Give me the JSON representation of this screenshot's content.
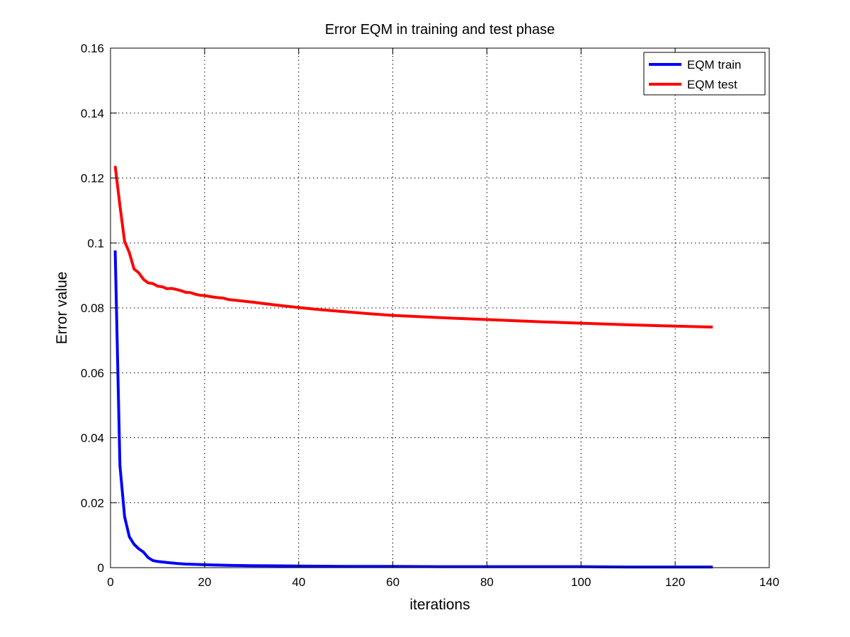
{
  "chart_data": {
    "type": "line",
    "title": "Error EQM in training and test phase",
    "xlabel": "iterations",
    "ylabel": "Error value",
    "xlim": [
      0,
      140
    ],
    "ylim": [
      0,
      0.16
    ],
    "xticks": [
      0,
      20,
      40,
      60,
      80,
      100,
      120,
      140
    ],
    "xtick_labels": [
      "0",
      "20",
      "40",
      "60",
      "80",
      "100",
      "120",
      "140"
    ],
    "yticks": [
      0,
      0.02,
      0.04,
      0.06,
      0.08,
      0.1,
      0.12,
      0.14,
      0.16
    ],
    "ytick_labels": [
      "0",
      "0.02",
      "0.04",
      "0.06",
      "0.08",
      "0.1",
      "0.12",
      "0.14",
      "0.16"
    ],
    "grid": true,
    "legend_position": "top-right",
    "series": [
      {
        "name": "EQM train",
        "color": "#0000ff",
        "x": [
          1,
          2,
          3,
          4,
          5,
          6,
          7,
          8,
          9,
          10,
          12,
          14,
          16,
          18,
          20,
          25,
          30,
          40,
          50,
          60,
          70,
          80,
          90,
          100,
          110,
          120,
          128
        ],
        "y": [
          0.0977,
          0.0315,
          0.0157,
          0.0095,
          0.0072,
          0.0058,
          0.0048,
          0.0031,
          0.0022,
          0.0019,
          0.0016,
          0.0013,
          0.0011,
          0.001,
          0.0009,
          0.0007,
          0.0006,
          0.0005,
          0.0004,
          0.0004,
          0.0003,
          0.0003,
          0.0003,
          0.0003,
          0.0002,
          0.0002,
          0.0002
        ]
      },
      {
        "name": "EQM test",
        "color": "#ff0000",
        "x": [
          1,
          2,
          3,
          4,
          5,
          6,
          7,
          8,
          9,
          10,
          11,
          12,
          13,
          14,
          15,
          16,
          17,
          18,
          19,
          20,
          22,
          24,
          25,
          30,
          35,
          40,
          45,
          50,
          55,
          60,
          70,
          80,
          90,
          100,
          110,
          120,
          128
        ],
        "y": [
          0.1237,
          0.1115,
          0.1005,
          0.097,
          0.092,
          0.0908,
          0.0888,
          0.0877,
          0.0875,
          0.0867,
          0.0865,
          0.0859,
          0.086,
          0.0857,
          0.0853,
          0.0848,
          0.0847,
          0.0842,
          0.0839,
          0.0838,
          0.0833,
          0.083,
          0.0826,
          0.0818,
          0.0809,
          0.0801,
          0.0794,
          0.0788,
          0.0782,
          0.0777,
          0.077,
          0.0764,
          0.0758,
          0.0753,
          0.0748,
          0.0744,
          0.0741
        ]
      }
    ]
  }
}
